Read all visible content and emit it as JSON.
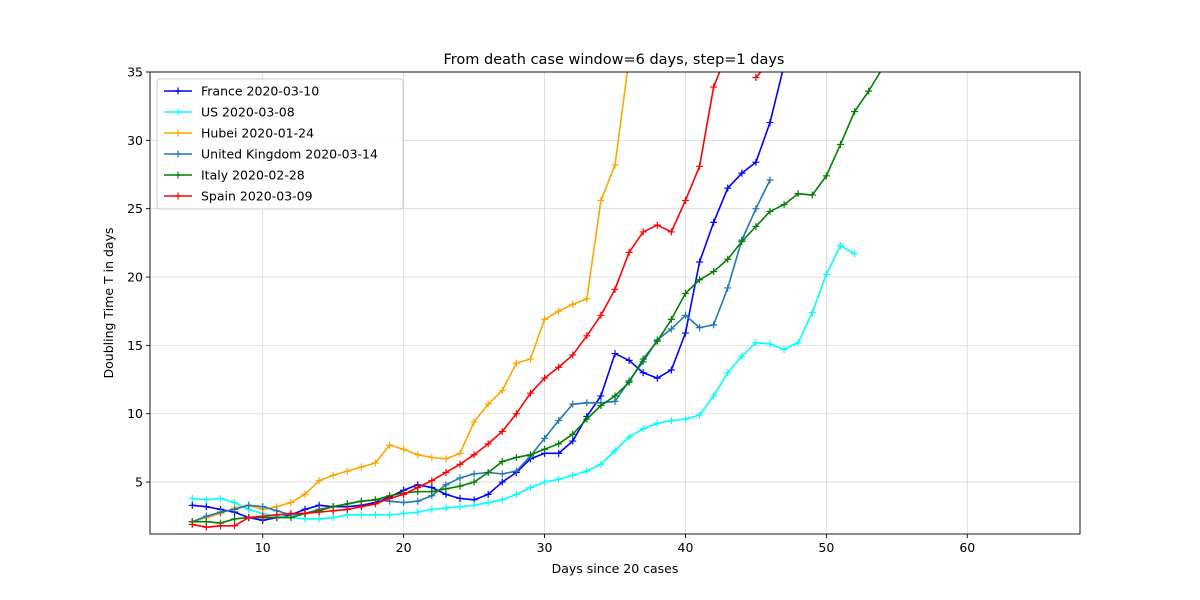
{
  "chart_data": {
    "type": "line",
    "title": "From death case window=6 days, step=1 days",
    "xlabel": "Days since 20 cases",
    "ylabel": "Doubling Time T in days",
    "xlim": [
      2.0,
      68.0
    ],
    "ylim": [
      1.2,
      35.0
    ],
    "xticks": [
      10,
      20,
      30,
      40,
      50,
      60
    ],
    "yticks": [
      5,
      10,
      15,
      20,
      25,
      30,
      35
    ],
    "grid": true,
    "legend_position": "upper-left",
    "marker": "plus",
    "series": [
      {
        "name": "France 2020-03-10",
        "color": "#0000ff",
        "x": [
          5,
          6,
          7,
          8,
          9,
          10,
          11,
          12,
          13,
          14,
          15,
          16,
          17,
          18,
          19,
          20,
          21,
          22,
          23,
          24,
          25,
          26,
          27,
          28,
          29,
          30,
          31,
          32,
          33,
          34,
          35,
          36,
          37,
          38,
          39,
          40,
          41,
          42,
          43,
          44,
          45,
          46,
          47
        ],
        "y": [
          3.3,
          3.2,
          3.0,
          2.8,
          2.4,
          2.2,
          2.4,
          2.6,
          3.0,
          3.3,
          3.2,
          3.2,
          3.3,
          3.5,
          3.9,
          4.4,
          4.8,
          4.6,
          4.1,
          3.8,
          3.7,
          4.1,
          5.0,
          5.7,
          6.7,
          7.1,
          7.1,
          8.0,
          9.8,
          11.3,
          14.4,
          13.9,
          13.0,
          12.6,
          13.2,
          15.9,
          21.1,
          24.0,
          26.5,
          27.6,
          28.4,
          31.3,
          35.5
        ]
      },
      {
        "name": "US 2020-03-08",
        "color": "#00ffff",
        "x": [
          5,
          6,
          7,
          8,
          9,
          10,
          11,
          12,
          13,
          14,
          15,
          16,
          17,
          18,
          19,
          20,
          21,
          22,
          23,
          24,
          25,
          26,
          27,
          28,
          29,
          30,
          31,
          32,
          33,
          34,
          35,
          36,
          37,
          38,
          39,
          40,
          41,
          42,
          43,
          44,
          45,
          46,
          47,
          48,
          49,
          50,
          51,
          52
        ],
        "y": [
          3.8,
          3.7,
          3.8,
          3.5,
          3.0,
          2.7,
          2.5,
          2.4,
          2.3,
          2.3,
          2.4,
          2.6,
          2.6,
          2.6,
          2.6,
          2.7,
          2.8,
          3.0,
          3.1,
          3.2,
          3.3,
          3.5,
          3.7,
          4.1,
          4.6,
          5.0,
          5.2,
          5.5,
          5.8,
          6.3,
          7.3,
          8.3,
          8.9,
          9.3,
          9.5,
          9.6,
          9.9,
          11.3,
          13.0,
          14.2,
          15.2,
          15.1,
          14.7,
          15.2,
          17.4,
          20.2,
          22.3,
          21.7
        ]
      },
      {
        "name": "Hubei 2020-01-24",
        "color": "#ffa500",
        "x": [
          5,
          6,
          7,
          8,
          9,
          10,
          11,
          12,
          13,
          14,
          15,
          16,
          17,
          18,
          19,
          20,
          21,
          22,
          23,
          24,
          25,
          26,
          27,
          28,
          29,
          30,
          31,
          32,
          33,
          34,
          35,
          36
        ],
        "y": [
          2.1,
          2.4,
          2.7,
          3.1,
          3.3,
          3.0,
          3.2,
          3.5,
          4.1,
          5.1,
          5.5,
          5.8,
          6.1,
          6.4,
          7.7,
          7.4,
          7.0,
          6.8,
          6.7,
          7.1,
          9.4,
          10.7,
          11.7,
          13.7,
          14.0,
          16.9,
          17.5,
          18.0,
          18.4,
          25.6,
          28.2,
          36.0
        ]
      },
      {
        "name": "United Kingdom 2020-03-14",
        "color": "#1f77b4",
        "x": [
          5,
          6,
          7,
          8,
          9,
          10,
          11,
          12,
          13,
          14,
          15,
          16,
          17,
          18,
          19,
          20,
          21,
          22,
          23,
          24,
          25,
          26,
          27,
          28,
          29,
          30,
          31,
          32,
          33,
          34,
          35,
          36,
          37,
          38,
          39,
          40,
          41,
          42,
          43,
          44,
          45,
          46
        ],
        "y": [
          2.1,
          2.5,
          2.8,
          3.0,
          3.3,
          3.2,
          2.9,
          2.6,
          2.7,
          3.0,
          3.2,
          3.4,
          3.6,
          3.7,
          3.6,
          3.5,
          3.6,
          4.0,
          4.8,
          5.3,
          5.6,
          5.7,
          5.6,
          5.8,
          6.9,
          8.2,
          9.5,
          10.7,
          10.8,
          10.8,
          10.9,
          12.4,
          13.8,
          15.4,
          16.2,
          17.2,
          16.3,
          16.5,
          19.2,
          22.7,
          25.0,
          27.1
        ]
      },
      {
        "name": "Italy 2020-02-28",
        "color": "#008000",
        "x": [
          5,
          6,
          7,
          8,
          9,
          10,
          11,
          12,
          13,
          14,
          15,
          16,
          17,
          18,
          19,
          20,
          21,
          22,
          23,
          24,
          25,
          26,
          27,
          28,
          29,
          30,
          31,
          32,
          33,
          34,
          35,
          36,
          37,
          38,
          39,
          40,
          41,
          42,
          43,
          44,
          45,
          46,
          47,
          48,
          49,
          50,
          51,
          52,
          53,
          54
        ],
        "y": [
          2.1,
          2.1,
          2.0,
          2.3,
          2.4,
          2.4,
          2.4,
          2.4,
          2.7,
          2.9,
          3.2,
          3.4,
          3.6,
          3.7,
          4.0,
          4.2,
          4.3,
          4.3,
          4.5,
          4.7,
          5.0,
          5.7,
          6.5,
          6.8,
          7.0,
          7.4,
          7.8,
          8.5,
          9.6,
          10.6,
          11.3,
          12.3,
          14.0,
          15.3,
          16.9,
          18.8,
          19.8,
          20.4,
          21.3,
          22.6,
          23.7,
          24.8,
          25.3,
          26.1,
          26.0,
          27.4,
          29.7,
          32.1,
          33.6,
          35.3
        ]
      },
      {
        "name": "Spain 2020-03-09",
        "color": "#ff0000",
        "x": [
          5,
          6,
          7,
          8,
          9,
          10,
          11,
          12,
          13,
          14,
          15,
          16,
          17,
          18,
          19,
          20,
          21,
          22,
          23,
          24,
          25,
          26,
          27,
          28,
          29,
          30,
          31,
          32,
          33,
          34,
          35,
          36,
          37,
          38,
          39,
          40,
          41,
          42,
          43
        ],
        "y": [
          1.9,
          1.7,
          1.8,
          1.8,
          2.4,
          2.5,
          2.6,
          2.7,
          2.7,
          2.8,
          2.9,
          3.0,
          3.2,
          3.4,
          3.8,
          4.1,
          4.6,
          5.1,
          5.7,
          6.3,
          7.0,
          7.8,
          8.7,
          10.0,
          11.5,
          12.6,
          13.4,
          14.3,
          15.7,
          17.2,
          19.1,
          21.8,
          23.3,
          23.8,
          23.3,
          25.6,
          28.1,
          33.9,
          36.5
        ]
      },
      {
        "name": "",
        "color": "#ff0000",
        "x": [
          45,
          45.6
        ],
        "y": [
          34.6,
          35.3
        ]
      }
    ]
  }
}
